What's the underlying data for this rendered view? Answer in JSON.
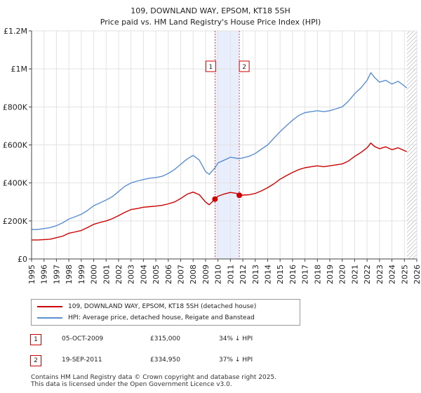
{
  "title": {
    "line1": "109, DOWNLAND WAY, EPSOM, KT18 5SH",
    "line2": "Price paid vs. HM Land Registry's House Price Index (HPI)"
  },
  "colors": {
    "property": "#cc0000",
    "hpi": "#5b8fd1",
    "band": "#e8eefc",
    "marker_border": "#cc0000"
  },
  "chart_data": {
    "type": "line",
    "title": "109, DOWNLAND WAY, EPSOM, KT18 5SH — Price paid vs. HM Land Registry's House Price Index (HPI)",
    "xlabel": "",
    "ylabel": "",
    "xlim": [
      1995,
      2026
    ],
    "ylim": [
      0,
      1200000
    ],
    "y_ticks": [
      0,
      200000,
      400000,
      600000,
      800000,
      1000000,
      1200000
    ],
    "y_tick_labels": [
      "£0",
      "£200K",
      "£400K",
      "£600K",
      "£800K",
      "£1M",
      "£1.2M"
    ],
    "x_ticks": [
      1995,
      1996,
      1997,
      1998,
      1999,
      2000,
      2001,
      2002,
      2003,
      2004,
      2005,
      2006,
      2007,
      2008,
      2009,
      2010,
      2011,
      2012,
      2013,
      2014,
      2015,
      2016,
      2017,
      2018,
      2019,
      2020,
      2021,
      2022,
      2023,
      2024,
      2025,
      2026
    ],
    "grid": true,
    "shaded_span": [
      2009.76,
      2011.72
    ],
    "hatched_from": 2025.2,
    "series": [
      {
        "name": "109, DOWNLAND WAY, EPSOM, KT18 5SH (detached house)",
        "color": "#cc0000",
        "x": [
          1995,
          1995.5,
          1996,
          1996.5,
          1997,
          1997.5,
          1998,
          1998.5,
          1999,
          1999.5,
          2000,
          2000.5,
          2001,
          2001.5,
          2002,
          2002.5,
          2003,
          2003.5,
          2004,
          2004.5,
          2005,
          2005.5,
          2006,
          2006.5,
          2007,
          2007.5,
          2008,
          2008.5,
          2009,
          2009.3,
          2009.76,
          2010,
          2010.5,
          2011,
          2011.5,
          2011.72,
          2012,
          2012.5,
          2013,
          2013.5,
          2014,
          2014.5,
          2015,
          2015.5,
          2016,
          2016.5,
          2017,
          2017.5,
          2018,
          2018.5,
          2019,
          2019.5,
          2020,
          2020.5,
          2021,
          2021.5,
          2022,
          2022.3,
          2022.6,
          2023,
          2023.5,
          2024,
          2024.5,
          2025,
          2025.2
        ],
        "y": [
          100000,
          100000,
          102000,
          104000,
          112000,
          120000,
          135000,
          142000,
          150000,
          165000,
          182000,
          192000,
          200000,
          212000,
          228000,
          245000,
          260000,
          265000,
          272000,
          275000,
          278000,
          282000,
          290000,
          300000,
          318000,
          340000,
          352000,
          338000,
          300000,
          285000,
          315000,
          330000,
          342000,
          350000,
          345000,
          334950,
          336000,
          338000,
          345000,
          358000,
          375000,
          395000,
          420000,
          438000,
          455000,
          470000,
          480000,
          485000,
          490000,
          485000,
          490000,
          495000,
          500000,
          515000,
          540000,
          560000,
          585000,
          610000,
          592000,
          580000,
          590000,
          575000,
          585000,
          570000,
          565000
        ]
      },
      {
        "name": "HPI: Average price, detached house, Reigate and Banstead",
        "color": "#5b8fd1",
        "x": [
          1995,
          1995.5,
          1996,
          1996.5,
          1997,
          1997.5,
          1998,
          1998.5,
          1999,
          1999.5,
          2000,
          2000.5,
          2001,
          2001.5,
          2002,
          2002.5,
          2003,
          2003.5,
          2004,
          2004.5,
          2005,
          2005.5,
          2006,
          2006.5,
          2007,
          2007.5,
          2008,
          2008.5,
          2009,
          2009.3,
          2009.76,
          2010,
          2010.5,
          2011,
          2011.5,
          2011.72,
          2012,
          2012.5,
          2013,
          2013.5,
          2014,
          2014.5,
          2015,
          2015.5,
          2016,
          2016.5,
          2017,
          2017.5,
          2018,
          2018.5,
          2019,
          2019.5,
          2020,
          2020.5,
          2021,
          2021.5,
          2022,
          2022.3,
          2022.6,
          2023,
          2023.5,
          2024,
          2024.5,
          2025,
          2025.2
        ],
        "y": [
          155000,
          155000,
          160000,
          165000,
          175000,
          190000,
          210000,
          222000,
          235000,
          255000,
          280000,
          295000,
          310000,
          328000,
          355000,
          382000,
          400000,
          410000,
          418000,
          425000,
          428000,
          435000,
          450000,
          470000,
          498000,
          525000,
          545000,
          520000,
          460000,
          445000,
          480000,
          505000,
          520000,
          535000,
          530000,
          528000,
          532000,
          540000,
          555000,
          578000,
          600000,
          635000,
          670000,
          700000,
          730000,
          755000,
          770000,
          775000,
          780000,
          775000,
          780000,
          790000,
          800000,
          830000,
          870000,
          900000,
          940000,
          980000,
          955000,
          930000,
          940000,
          920000,
          935000,
          910000,
          900000
        ]
      }
    ],
    "markers": [
      {
        "label": "1",
        "x": 2009.76,
        "y": 315000
      },
      {
        "label": "2",
        "x": 2011.72,
        "y": 334950
      }
    ]
  },
  "legend": {
    "property_label": "109, DOWNLAND WAY, EPSOM, KT18 5SH (detached house)",
    "hpi_label": "HPI: Average price, detached house, Reigate and Banstead"
  },
  "transactions": [
    {
      "num": "1",
      "date": "05-OCT-2009",
      "price": "£315,000",
      "hpi": "34% ↓ HPI"
    },
    {
      "num": "2",
      "date": "19-SEP-2011",
      "price": "£334,950",
      "hpi": "37% ↓ HPI"
    }
  ],
  "footer": {
    "line1": "Contains HM Land Registry data © Crown copyright and database right 2025.",
    "line2": "This data is licensed under the Open Government Licence v3.0."
  }
}
